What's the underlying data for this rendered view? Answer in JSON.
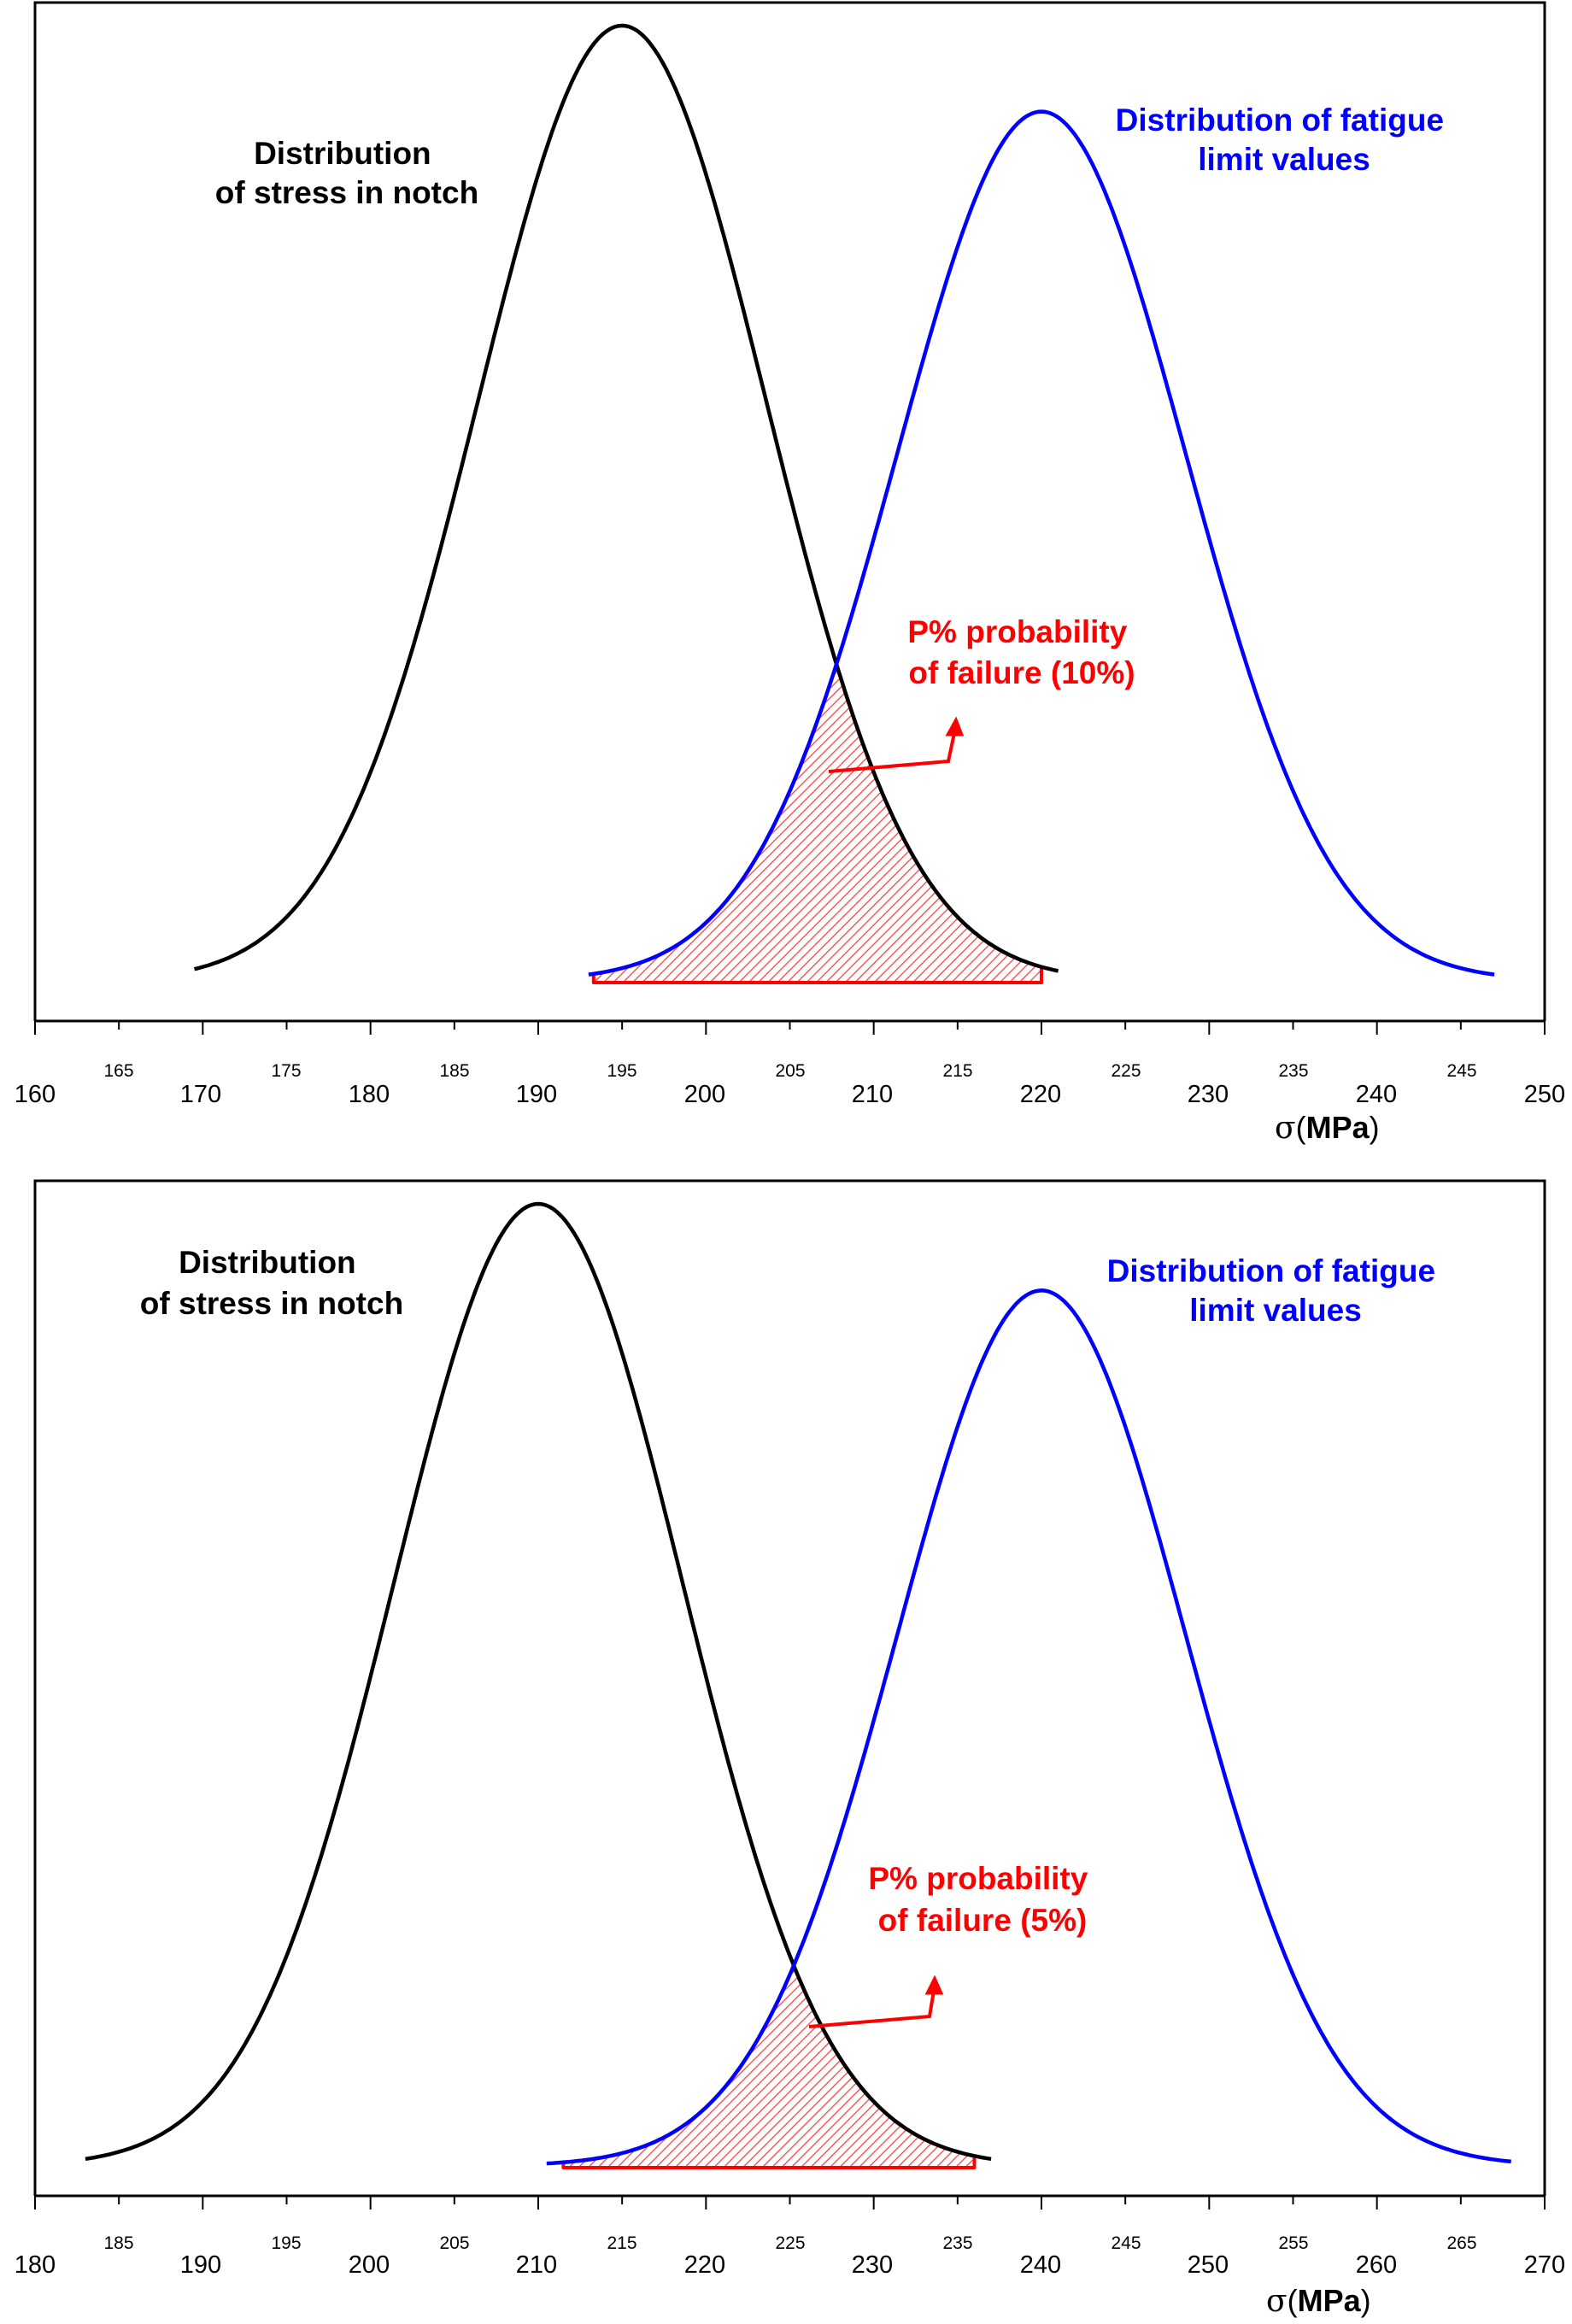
{
  "chart_data": [
    {
      "type": "line",
      "title": "",
      "xlabel_symbol": "σ",
      "xlabel_unit": "(MPa)",
      "xlabel_unit_open": "(",
      "xlabel_unit_text": "MPa",
      "xlabel_unit_close": ")",
      "xlim": [
        160,
        250
      ],
      "major_ticks": [
        "160",
        "170",
        "180",
        "190",
        "200",
        "210",
        "220",
        "230",
        "240",
        "250"
      ],
      "minor_ticks": [
        "165",
        "175",
        "185",
        "195",
        "205",
        "215",
        "225",
        "235",
        "245"
      ],
      "series": [
        {
          "name": "Distribution of stress in notch",
          "label_lines": [
            "Distribution",
            "of stress in notch"
          ],
          "color": "#000000",
          "mean": 195,
          "sd": 8.6,
          "x_range": [
            169.5,
            221
          ],
          "peak": 1.0
        },
        {
          "name": "Distribution of fatigue limit values",
          "label_lines": [
            "Distribution of fatigue",
            "limit values"
          ],
          "color": "#0000ff",
          "mean": 220,
          "sd": 8.6,
          "x_range": [
            193,
            247
          ],
          "peak": 0.91
        }
      ],
      "failure_region": {
        "label_lines": [
          "P% probability",
          "of failure (10%)"
        ],
        "color": "#ff0000",
        "probability_percent": 10,
        "x_range": [
          193.3,
          220
        ],
        "intersection_x": 207.5
      }
    },
    {
      "type": "line",
      "title": "",
      "xlabel_symbol": "σ",
      "xlabel_unit": "(MPa)",
      "xlabel_unit_open": "(",
      "xlabel_unit_text": "MPa",
      "xlabel_unit_close": ")",
      "xlim": [
        180,
        270
      ],
      "major_ticks": [
        "180",
        "190",
        "200",
        "210",
        "220",
        "230",
        "240",
        "250",
        "260",
        "270"
      ],
      "minor_ticks": [
        "185",
        "195",
        "205",
        "215",
        "225",
        "235",
        "245",
        "255",
        "265"
      ],
      "series": [
        {
          "name": "Distribution of stress in notch",
          "label_lines": [
            "Distribution",
            "of stress in notch"
          ],
          "color": "#000000",
          "mean": 210,
          "sd": 8.6,
          "x_range": [
            183,
            237
          ],
          "peak": 1.0
        },
        {
          "name": "Distribution of fatigue limit values",
          "label_lines": [
            "Distribution of fatigue",
            "limit values"
          ],
          "color": "#0000ff",
          "mean": 240,
          "sd": 8.6,
          "x_range": [
            210.5,
            268
          ],
          "peak": 0.91
        }
      ],
      "failure_region": {
        "label_lines": [
          "P% probability",
          "of failure (5%)"
        ],
        "color": "#ff0000",
        "probability_percent": 5,
        "x_range": [
          211.5,
          236
        ],
        "intersection_x": 224.5
      }
    }
  ]
}
